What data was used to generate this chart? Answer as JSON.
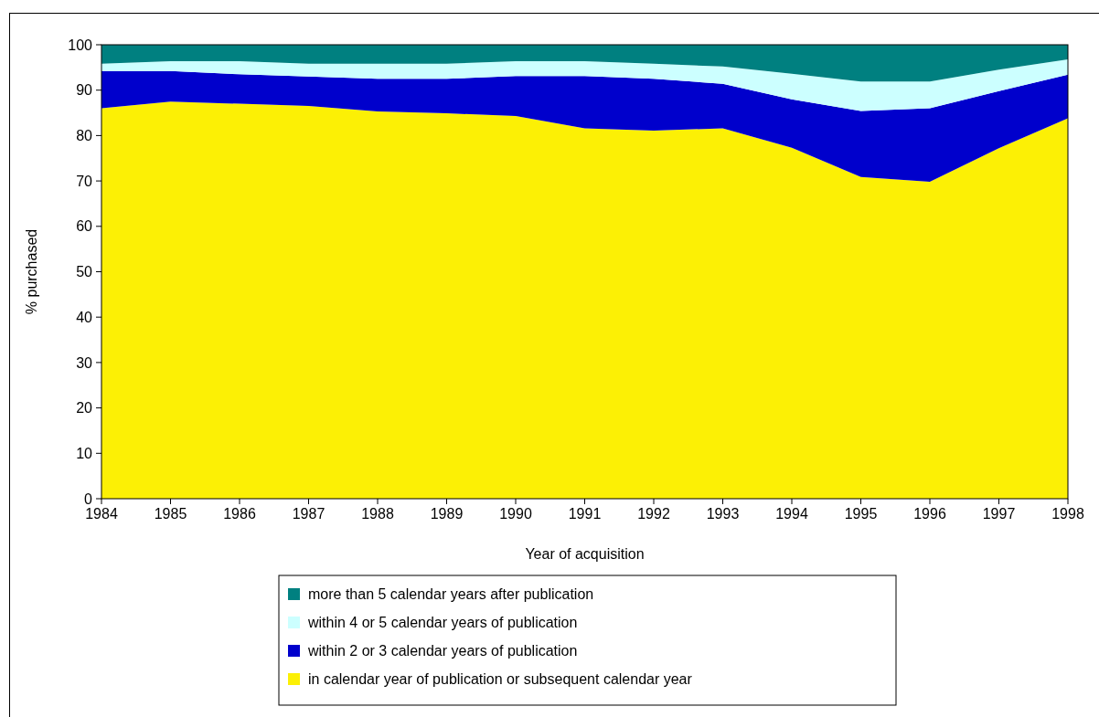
{
  "chart_data": {
    "type": "area",
    "stacked": true,
    "xlabel": "Year of acquisition",
    "ylabel": "% purchased",
    "x": [
      1984,
      1985,
      1986,
      1987,
      1988,
      1989,
      1990,
      1991,
      1992,
      1993,
      1994,
      1995,
      1996,
      1997,
      1998
    ],
    "xlim": [
      1984,
      1998
    ],
    "xticks": [
      1984,
      1985,
      1986,
      1987,
      1988,
      1989,
      1990,
      1991,
      1992,
      1993,
      1994,
      1995,
      1996,
      1997,
      1998
    ],
    "ylim": [
      0,
      100
    ],
    "yticks": [
      0,
      10,
      20,
      30,
      40,
      50,
      60,
      70,
      80,
      90,
      100
    ],
    "grid": false,
    "legend": "bottom",
    "series": [
      {
        "name": "in calendar year of publication or subsequent calendar year",
        "color": "#fcf005",
        "values": [
          86,
          87.5,
          87,
          86.5,
          85.3,
          84.9,
          84.3,
          81.6,
          81.1,
          81.6,
          77.3,
          70.9,
          69.8,
          77.2,
          83.8
        ]
      },
      {
        "name": "within 2 or 3 calendar years of publication",
        "color": "#0000cc",
        "values": [
          8.2,
          6.7,
          6.5,
          6.5,
          7.2,
          7.6,
          8.8,
          11.5,
          11.4,
          9.8,
          10.7,
          14.5,
          16.2,
          12.6,
          9.6
        ]
      },
      {
        "name": "within 4 or 5 calendar years of publication",
        "color": "#ccffff",
        "values": [
          1.6,
          2.2,
          2.9,
          2.8,
          3.3,
          3.3,
          3.3,
          3.3,
          3.3,
          3.8,
          5.6,
          6.5,
          5.9,
          4.7,
          3.4
        ]
      },
      {
        "name": "more than 5 calendar years after publication",
        "color": "#008080",
        "values": [
          4.2,
          3.6,
          3.6,
          4.2,
          4.2,
          4.2,
          3.6,
          3.6,
          4.2,
          4.8,
          6.4,
          8.1,
          8.1,
          5.5,
          3.2
        ]
      }
    ]
  }
}
